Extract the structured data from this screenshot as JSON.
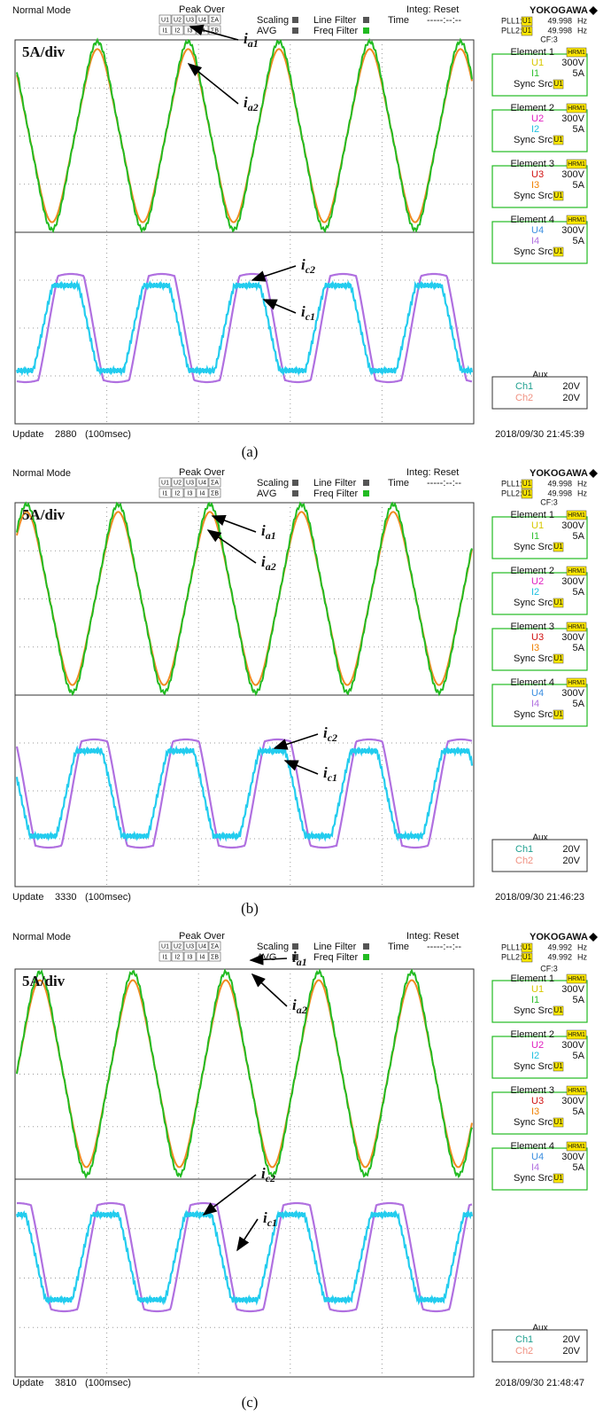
{
  "panels": [
    {
      "mode": "Normal Mode",
      "peak_over": "Peak Over",
      "channels_u": [
        "U1",
        "U2",
        "U3",
        "U4",
        "ΣA"
      ],
      "channels_i": [
        "I1",
        "I2",
        "I3",
        "I4",
        "ΣB"
      ],
      "scaling": "Scaling",
      "avg": "AVG",
      "line_filter": "Line Filter",
      "freq_filter": "Freq Filter",
      "time": "Time",
      "integ": "Integ: Reset",
      "integ_time": "-----:--:--",
      "brand": "YOKOGAWA",
      "pll": [
        {
          "label": "PLL1:",
          "src": "U1",
          "value": "49.998",
          "unit": "Hz"
        },
        {
          "label": "PLL2:",
          "src": "U1",
          "value": "49.998",
          "unit": "Hz"
        }
      ],
      "cf": "CF:3",
      "scale": "5A/div",
      "annotations": [
        {
          "symbol": "i",
          "sub": "a1"
        },
        {
          "symbol": "i",
          "sub": "a2"
        },
        {
          "symbol": "i",
          "sub": "c2"
        },
        {
          "symbol": "i",
          "sub": "c1"
        }
      ],
      "elements": [
        {
          "title": "Element 1",
          "mode": "HRM1",
          "u": "U1",
          "u_range": "300V",
          "i": "I1",
          "i_range": "5A",
          "sync": "Sync Src:",
          "sync_src": "U1"
        },
        {
          "title": "Element 2",
          "mode": "HRM1",
          "u": "U2",
          "u_range": "300V",
          "i": "I2",
          "i_range": "5A",
          "sync": "Sync Src:",
          "sync_src": "U1"
        },
        {
          "title": "Element 3",
          "mode": "HRM1",
          "u": "U3",
          "u_range": "300V",
          "i": "I3",
          "i_range": "5A",
          "sync": "Sync Src:",
          "sync_src": "U1"
        },
        {
          "title": "Element 4",
          "mode": "HRM1",
          "u": "U4",
          "u_range": "300V",
          "i": "I4",
          "i_range": "5A",
          "sync": "Sync Src:",
          "sync_src": "U1"
        }
      ],
      "aux": {
        "title": "Aux",
        "ch1": "Ch1",
        "ch1_range": "20V",
        "ch2": "Ch2",
        "ch2_range": "20V"
      },
      "update": "Update",
      "update_count": "2880",
      "update_rate": "(100msec)",
      "datetime": "2018/09/30 21:45:39",
      "caption": "(a)"
    },
    {
      "mode": "Normal Mode",
      "peak_over": "Peak Over",
      "channels_u": [
        "U1",
        "U2",
        "U3",
        "U4",
        "ΣA"
      ],
      "channels_i": [
        "I1",
        "I2",
        "I3",
        "I4",
        "ΣB"
      ],
      "scaling": "Scaling",
      "avg": "AVG",
      "line_filter": "Line Filter",
      "freq_filter": "Freq Filter",
      "time": "Time",
      "integ": "Integ: Reset",
      "integ_time": "-----:--:--",
      "brand": "YOKOGAWA",
      "pll": [
        {
          "label": "PLL1:",
          "src": "U1",
          "value": "49.998",
          "unit": "Hz"
        },
        {
          "label": "PLL2:",
          "src": "U1",
          "value": "49.998",
          "unit": "Hz"
        }
      ],
      "cf": "CF:3",
      "scale": "5A/div",
      "annotations": [
        {
          "symbol": "i",
          "sub": "a1"
        },
        {
          "symbol": "i",
          "sub": "a2"
        },
        {
          "symbol": "i",
          "sub": "c2"
        },
        {
          "symbol": "i",
          "sub": "c1"
        }
      ],
      "elements": [
        {
          "title": "Element 1",
          "mode": "HRM1",
          "u": "U1",
          "u_range": "300V",
          "i": "I1",
          "i_range": "5A",
          "sync": "Sync Src:",
          "sync_src": "U1"
        },
        {
          "title": "Element 2",
          "mode": "HRM1",
          "u": "U2",
          "u_range": "300V",
          "i": "I2",
          "i_range": "5A",
          "sync": "Sync Src:",
          "sync_src": "U1"
        },
        {
          "title": "Element 3",
          "mode": "HRM1",
          "u": "U3",
          "u_range": "300V",
          "i": "I3",
          "i_range": "5A",
          "sync": "Sync Src:",
          "sync_src": "U1"
        },
        {
          "title": "Element 4",
          "mode": "HRM1",
          "u": "U4",
          "u_range": "300V",
          "i": "I4",
          "i_range": "5A",
          "sync": "Sync Src:",
          "sync_src": "U1"
        }
      ],
      "aux": {
        "title": "Aux",
        "ch1": "Ch1",
        "ch1_range": "20V",
        "ch2": "Ch2",
        "ch2_range": "20V"
      },
      "update": "Update",
      "update_count": "3330",
      "update_rate": "(100msec)",
      "datetime": "2018/09/30 21:46:23",
      "caption": "(b)"
    },
    {
      "mode": "Normal Mode",
      "peak_over": "Peak Over",
      "channels_u": [
        "U1",
        "U2",
        "U3",
        "U4",
        "ΣA"
      ],
      "channels_i": [
        "I1",
        "I2",
        "I3",
        "I4",
        "ΣB"
      ],
      "scaling": "Scaling",
      "avg": "AVG",
      "line_filter": "Line Filter",
      "freq_filter": "Freq Filter",
      "time": "Time",
      "integ": "Integ: Reset",
      "integ_time": "-----:--:--",
      "brand": "YOKOGAWA",
      "pll": [
        {
          "label": "PLL1:",
          "src": "U1",
          "value": "49.992",
          "unit": "Hz"
        },
        {
          "label": "PLL2:",
          "src": "U1",
          "value": "49.992",
          "unit": "Hz"
        }
      ],
      "cf": "CF:3",
      "scale": "5A/div",
      "annotations": [
        {
          "symbol": "i",
          "sub": "a1"
        },
        {
          "symbol": "i",
          "sub": "a2"
        },
        {
          "symbol": "i",
          "sub": "c2"
        },
        {
          "symbol": "i",
          "sub": "c1"
        }
      ],
      "elements": [
        {
          "title": "Element 1",
          "mode": "HRM1",
          "u": "U1",
          "u_range": "300V",
          "i": "I1",
          "i_range": "5A",
          "sync": "Sync Src:",
          "sync_src": "U1"
        },
        {
          "title": "Element 2",
          "mode": "HRM1",
          "u": "U2",
          "u_range": "300V",
          "i": "I2",
          "i_range": "5A",
          "sync": "Sync Src:",
          "sync_src": "U1"
        },
        {
          "title": "Element 3",
          "mode": "HRM1",
          "u": "U3",
          "u_range": "300V",
          "i": "I3",
          "i_range": "5A",
          "sync": "Sync Src:",
          "sync_src": "U1"
        },
        {
          "title": "Element 4",
          "mode": "HRM1",
          "u": "U4",
          "u_range": "300V",
          "i": "I4",
          "i_range": "5A",
          "sync": "Sync Src:",
          "sync_src": "U1"
        }
      ],
      "aux": {
        "title": "Aux",
        "ch1": "Ch1",
        "ch1_range": "20V",
        "ch2": "Ch2",
        "ch2_range": "20V"
      },
      "update": "Update",
      "update_count": "3810",
      "update_rate": "(100msec)",
      "datetime": "2018/09/30 21:48:47",
      "caption": "(c)"
    }
  ]
}
